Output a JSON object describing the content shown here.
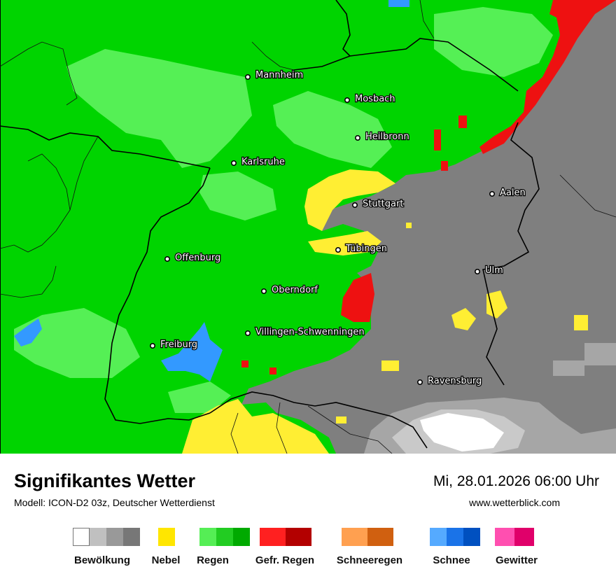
{
  "map": {
    "cities": [
      {
        "name": "Mannheim"
      },
      {
        "name": "Mosbach"
      },
      {
        "name": "Heilbronn"
      },
      {
        "name": "Karlsruhe"
      },
      {
        "name": "Stuttgart"
      },
      {
        "name": "Aalen"
      },
      {
        "name": "Tübingen"
      },
      {
        "name": "Offenburg"
      },
      {
        "name": "Ulm"
      },
      {
        "name": "Oberndorf"
      },
      {
        "name": "Villingen-Schwenningen"
      },
      {
        "name": "Freiburg"
      },
      {
        "name": "Ravensburg"
      }
    ],
    "colors": {
      "rain_light": "#00d400",
      "rain_moderate": "#33e233",
      "rain_lighter_patch": "#55f055",
      "cloud_dark": "#7f7f7f",
      "cloud_mid": "#a6a6a6",
      "cloud_light": "#c9c9c9",
      "clear": "#ffffff",
      "fog": "#ffee33",
      "freezing_rain": "#ee1111",
      "snow": "#3399ff",
      "border": "#000000"
    }
  },
  "header": {
    "title": "Signifikantes Wetter",
    "model": "Modell: ICON-D2 03z, Deutscher Wetterdienst",
    "datetime": "Mi, 28.01.2026 06:00 Uhr",
    "website": "www.wetterblick.com"
  },
  "legend": [
    {
      "label": "Bewölkung",
      "colors": [
        "#ffffff",
        "#c0c0c0",
        "#999999",
        "#777777"
      ]
    },
    {
      "label": "Nebel",
      "colors": [
        "#ffe600"
      ]
    },
    {
      "label": "Regen",
      "colors": [
        "#55ee55",
        "#22cc22",
        "#00aa00"
      ]
    },
    {
      "label": "Gefr. Regen",
      "colors": [
        "#ff2020",
        "#b30000"
      ]
    },
    {
      "label": "Schneeregen",
      "colors": [
        "#ffa050",
        "#d06010"
      ]
    },
    {
      "label": "Schnee",
      "colors": [
        "#55aaff",
        "#1a73e8",
        "#0050c0"
      ]
    },
    {
      "label": "Gewitter",
      "colors": [
        "#ff4fb0",
        "#e0006a"
      ]
    }
  ]
}
